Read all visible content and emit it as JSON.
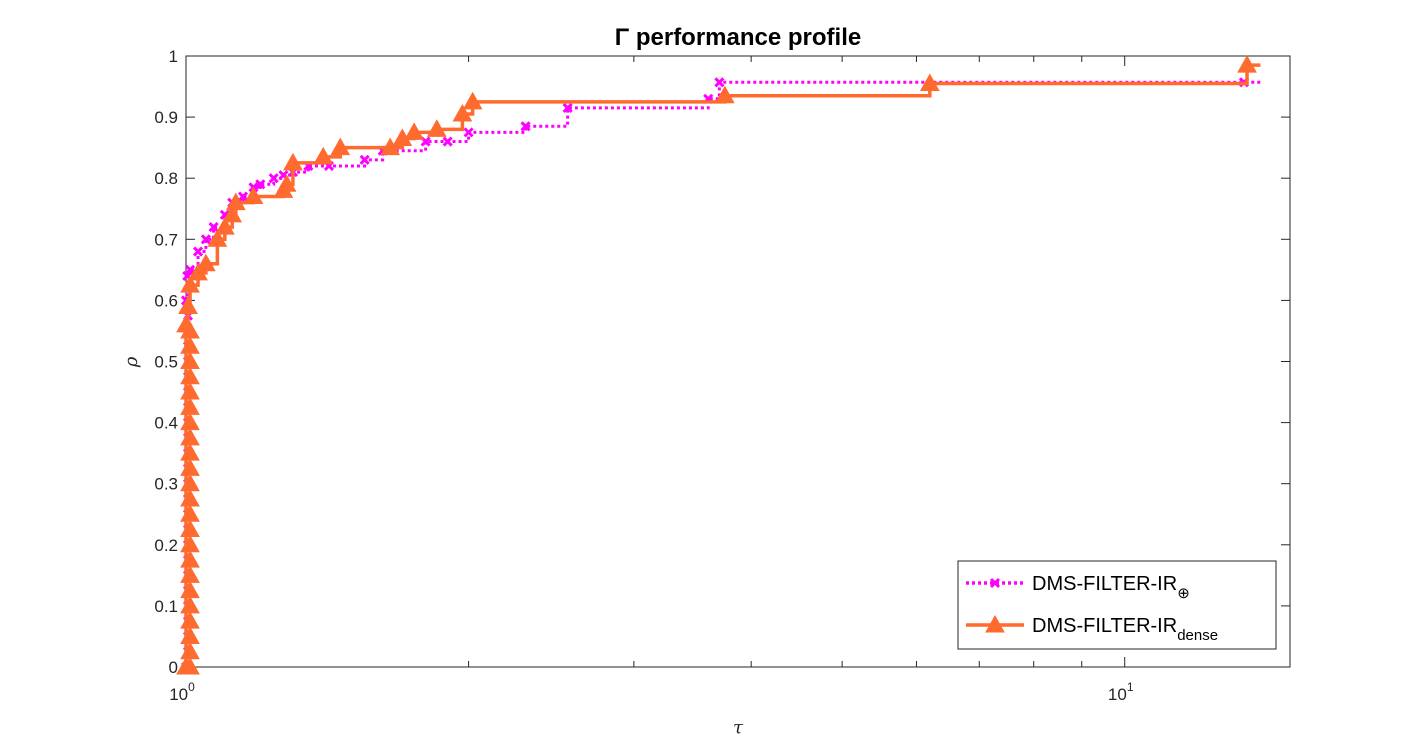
{
  "chart_data": {
    "type": "line",
    "title": "Γ performance profile",
    "xlabel": "τ",
    "ylabel": "ρ",
    "xscale": "log",
    "xlim": [
      1,
      15
    ],
    "ylim": [
      0,
      1
    ],
    "x_tick_labels": [
      {
        "base": "10",
        "exp": "0"
      },
      {
        "base": "10",
        "exp": "1"
      }
    ],
    "y_ticks": [
      0,
      0.1,
      0.2,
      0.3,
      0.4,
      0.5,
      0.6,
      0.7,
      0.8,
      0.9,
      1
    ],
    "y_tick_labels": [
      "0",
      "0.1",
      "0.2",
      "0.3",
      "0.4",
      "0.5",
      "0.6",
      "0.7",
      "0.8",
      "0.9",
      "1"
    ],
    "legend_position": "bottom-right",
    "series": [
      {
        "name": "DMS-FILTER-IR",
        "name_sub": "⊕",
        "color": "#ff00ff",
        "style": "dotted",
        "marker": "x",
        "x": [
          1.0,
          1.0,
          1.003,
          1.01,
          1.03,
          1.05,
          1.07,
          1.1,
          1.12,
          1.15,
          1.18,
          1.2,
          1.24,
          1.27,
          1.3,
          1.35,
          1.42,
          1.55,
          1.62,
          1.8,
          1.9,
          2.0,
          2.3,
          2.55,
          3.6,
          3.7,
          13.4
        ],
        "y": [
          0.0,
          0.6,
          0.64,
          0.65,
          0.68,
          0.7,
          0.72,
          0.74,
          0.76,
          0.77,
          0.785,
          0.79,
          0.8,
          0.805,
          0.81,
          0.82,
          0.82,
          0.83,
          0.845,
          0.86,
          0.86,
          0.875,
          0.885,
          0.915,
          0.93,
          0.957,
          0.957
        ]
      },
      {
        "name": "DMS-FILTER-IR",
        "name_sub": "dense",
        "color": "#ff6a2f",
        "style": "solid",
        "marker": "triangle",
        "x": [
          1.0,
          1.0,
          1.005,
          1.01,
          1.03,
          1.05,
          1.08,
          1.1,
          1.12,
          1.13,
          1.18,
          1.27,
          1.28,
          1.3,
          1.4,
          1.46,
          1.65,
          1.7,
          1.75,
          1.85,
          1.97,
          2.02,
          3.75,
          6.2,
          13.5
        ],
        "y": [
          0.0,
          0.56,
          0.59,
          0.625,
          0.645,
          0.66,
          0.7,
          0.72,
          0.74,
          0.76,
          0.77,
          0.78,
          0.79,
          0.825,
          0.835,
          0.85,
          0.85,
          0.865,
          0.875,
          0.88,
          0.905,
          0.925,
          0.935,
          0.955,
          0.985
        ]
      }
    ]
  }
}
